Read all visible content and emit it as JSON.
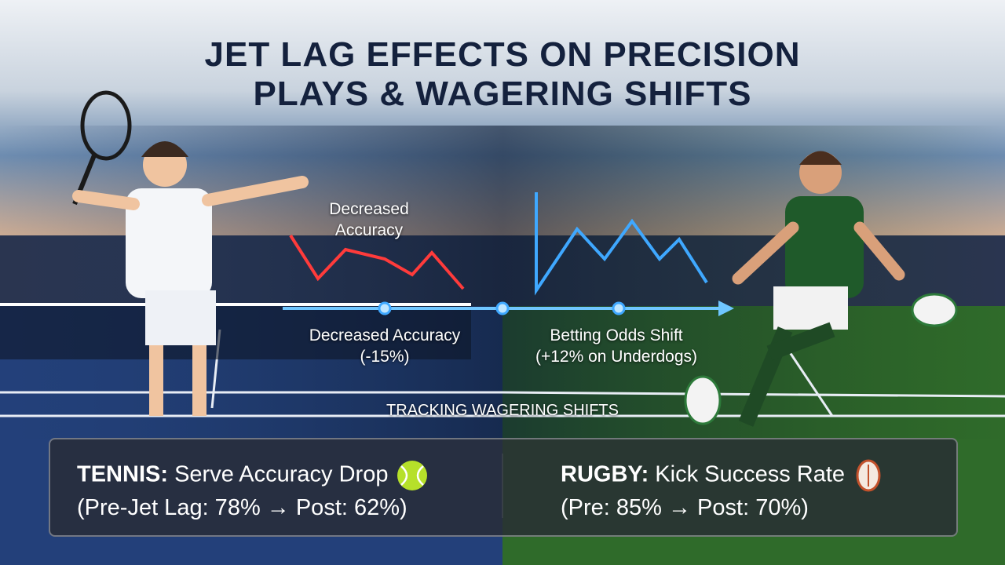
{
  "header": {
    "title_lines": [
      "JET LAG EFFECTS ON PRECISION",
      "PLAYS & WAGERING SHIFTS"
    ]
  },
  "graphic": {
    "chart_label": "Decreased Accuracy",
    "timeline_labels": [
      {
        "title": "Decreased Accuracy",
        "detail": "(-15%)"
      },
      {
        "title": "Betting Odds Shift",
        "detail": "(+12% on Underdogs)"
      }
    ],
    "caption": "TRACKING WAGERING SHIFTS"
  },
  "panel": {
    "items": [
      {
        "sport": "TENNIS:",
        "metric": "Serve Accuracy Drop",
        "detail": "(Pre-Jet Lag: 78% → Post: 62%)"
      },
      {
        "sport": "RUGBY:",
        "metric": "Kick Success Rate",
        "detail": "(Pre: 85% → Post: 70%)"
      }
    ]
  }
}
